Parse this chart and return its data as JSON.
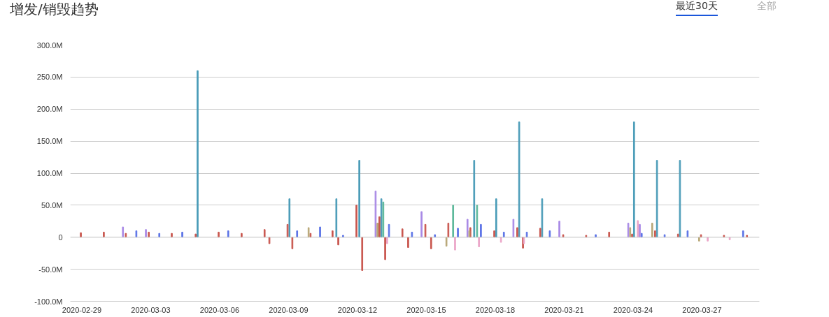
{
  "chart_data": {
    "type": "bar",
    "title": "增发/销毁趋势",
    "annotations": [
      "最近30天",
      "全部"
    ],
    "xlim": [
      "2020-02-28T12:00",
      "2020-03-29T12:00"
    ],
    "xticks": [
      "2020-02-29",
      "2020-03-03",
      "2020-03-06",
      "2020-03-09",
      "2020-03-12",
      "2020-03-15",
      "2020-03-18",
      "2020-03-21",
      "2020-03-24",
      "2020-03-27"
    ],
    "ylim": [
      -100,
      300
    ],
    "yticks": [
      {
        "value": -100,
        "label": "-100.0M"
      },
      {
        "value": -50,
        "label": "-50.0M"
      },
      0,
      {
        "value": 50,
        "label": "50.0M"
      },
      {
        "value": 100,
        "label": "100.0M"
      },
      {
        "value": 150,
        "label": "150.0M"
      },
      {
        "value": 200,
        "label": "200.0M"
      },
      {
        "value": 250,
        "label": "250.0M"
      },
      {
        "value": 300,
        "label": "300.0M"
      }
    ],
    "grid": "y",
    "series": [
      {
        "color": "#4b9cb8",
        "x": [
          "2020-03-05T01:00",
          "2020-03-09T01:00",
          "2020-03-11T02:00",
          "2020-03-12T02:00",
          "2020-03-13T01:00",
          "2020-03-17T02:00",
          "2020-03-18T01:00",
          "2020-03-19T01:00",
          "2020-03-20T01:00",
          "2020-03-24T01:00",
          "2020-03-25T01:00",
          "2020-03-26T01:00"
        ],
        "values": [
          260,
          60,
          60,
          120,
          60,
          120,
          60,
          180,
          60,
          180,
          120,
          120
        ]
      },
      {
        "color": "#5cb89a",
        "x": [
          "2020-03-13T03:00",
          "2020-03-16T04:00",
          "2020-03-17T05:00"
        ],
        "values": [
          55,
          50,
          50
        ]
      },
      {
        "color": "#c9574f",
        "x": [
          "2020-02-28T23:00",
          "2020-02-29T23:00",
          "2020-03-01T22:00",
          "2020-03-02T22:00",
          "2020-03-03T22:00",
          "2020-03-04T23:00",
          "2020-03-05T23:00",
          "2020-03-06T23:00",
          "2020-03-07T23:00",
          "2020-03-08T04:00",
          "2020-03-08T23:00",
          "2020-03-09T04:00",
          "2020-03-09T23:00",
          "2020-03-10T22:00",
          "2020-03-11T04:00",
          "2020-03-11T23:00",
          "2020-03-12T05:00",
          "2020-03-12T23:00",
          "2020-03-13T05:00",
          "2020-03-13T23:00",
          "2020-03-14T05:00",
          "2020-03-14T23:00",
          "2020-03-15T05:00",
          "2020-03-15T23:00",
          "2020-03-16T22:00",
          "2020-03-17T23:00",
          "2020-03-18T23:00",
          "2020-03-19T05:00",
          "2020-03-19T23:00",
          "2020-03-20T23:00",
          "2020-03-21T23:00",
          "2020-03-22T23:00",
          "2020-03-23T23:00",
          "2020-03-24T23:00",
          "2020-03-25T23:00",
          "2020-03-26T23:00",
          "2020-03-27T23:00",
          "2020-03-28T23:00"
        ],
        "values": [
          7,
          8,
          6,
          8,
          6,
          5,
          8,
          6,
          12,
          -10,
          20,
          -18,
          6,
          10,
          -12,
          50,
          -52,
          32,
          -35,
          13,
          -16,
          20,
          -18,
          22,
          15,
          10,
          15,
          -17,
          14,
          4,
          3,
          8,
          5,
          10,
          5,
          4,
          3,
          3
        ]
      },
      {
        "color": "#5b73e6",
        "x": [
          "2020-03-02T09:00",
          "2020-03-03T09:00",
          "2020-03-04T09:00",
          "2020-03-06T09:00",
          "2020-03-09T09:00",
          "2020-03-10T09:00",
          "2020-03-11T09:00",
          "2020-03-13T09:00",
          "2020-03-14T09:00",
          "2020-03-15T09:00",
          "2020-03-16T09:00",
          "2020-03-17T09:00",
          "2020-03-18T09:00",
          "2020-03-19T09:00",
          "2020-03-20T09:00",
          "2020-03-22T09:00",
          "2020-03-24T09:00",
          "2020-03-25T09:00",
          "2020-03-26T09:00",
          "2020-03-28T19:00"
        ],
        "values": [
          10,
          6,
          8,
          10,
          10,
          16,
          3,
          20,
          8,
          4,
          14,
          20,
          8,
          8,
          10,
          4,
          6,
          4,
          10,
          10
        ]
      },
      {
        "color": "#a98ae6",
        "x": [
          "2020-03-01T19:00",
          "2020-03-02T19:00",
          "2020-03-12T19:00",
          "2020-03-14T19:00",
          "2020-03-16T19:00",
          "2020-03-18T19:00",
          "2020-03-20T19:00",
          "2020-03-23T19:00",
          "2020-03-24T07:00"
        ],
        "values": [
          16,
          12,
          72,
          40,
          28,
          28,
          25,
          22,
          20
        ]
      },
      {
        "color": "#eba6c8",
        "x": [
          "2020-03-13T07:00",
          "2020-03-16T06:00",
          "2020-03-17T07:00",
          "2020-03-18T06:00",
          "2020-03-19T06:00",
          "2020-03-24T05:00",
          "2020-03-27T06:00",
          "2020-03-28T05:00"
        ],
        "values": [
          -10,
          -20,
          -15,
          -8,
          -10,
          26,
          -6,
          -4
        ]
      },
      {
        "color": "#b8a777",
        "x": [
          "2020-03-09T21:00",
          "2020-03-12T21:00",
          "2020-03-15T21:00",
          "2020-03-16T21:00",
          "2020-03-23T21:00",
          "2020-03-24T20:00",
          "2020-03-26T21:00"
        ],
        "values": [
          15,
          22,
          -14,
          10,
          15,
          22,
          -6
        ]
      }
    ]
  }
}
